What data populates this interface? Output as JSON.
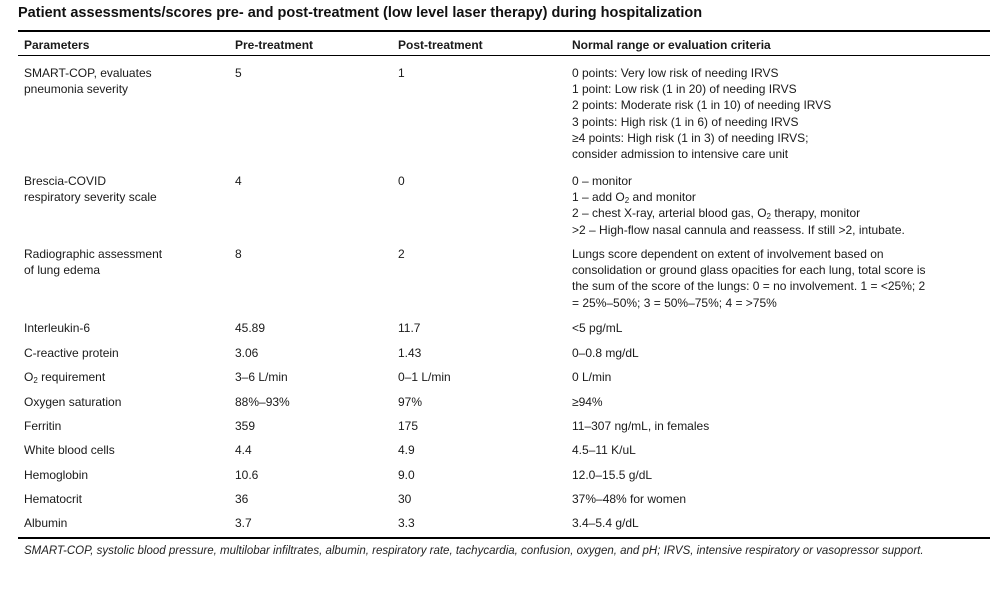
{
  "title": "Patient assessments/scores pre- and post-treatment (low level laser therapy) during hospitalization",
  "headers": {
    "parameters": "Parameters",
    "pre": "Pre-treatment",
    "post": "Post-treatment",
    "normal": "Normal range or evaluation criteria"
  },
  "rows": [
    {
      "param": [
        "SMART-COP, evaluates",
        "pneumonia severity"
      ],
      "pre": "5",
      "post": "1",
      "normal": [
        "0 points: Very low risk of needing IRVS",
        "1 point: Low risk (1 in 20) of needing IRVS",
        "2 points: Moderate risk (1 in 10) of needing IRVS",
        "3 points: High risk (1 in 6) of needing IRVS",
        "≥4 points: High risk (1 in 3) of needing IRVS;",
        "consider admission to intensive care unit"
      ]
    },
    {
      "param": [
        "Brescia-COVID",
        "respiratory severity scale"
      ],
      "pre": "4",
      "post": "0",
      "normal": [
        "0 – monitor",
        "1 – add O2 and monitor",
        "2 – chest X-ray, arterial blood gas, O2 therapy, monitor",
        ">2 – High-flow nasal cannula and reassess. If still >2, intubate."
      ]
    },
    {
      "param": [
        "Radiographic assessment",
        "of lung edema"
      ],
      "pre": "8",
      "post": "2",
      "normal": [
        "Lungs score dependent on extent of involvement based on",
        "consolidation or ground glass opacities for each lung, total score is",
        "the sum of the score of the lungs:  0 = no involvement. 1 = <25%; 2",
        "= 25%–50%; 3 = 50%–75%; 4 = >75%"
      ]
    },
    {
      "param": [
        "Interleukin-6"
      ],
      "pre": "45.89",
      "post": "11.7",
      "normal": [
        "<5 pg/mL"
      ]
    },
    {
      "param": [
        "C-reactive protein"
      ],
      "pre": "3.06",
      "post": "1.43",
      "normal": [
        "0–0.8 mg/dL"
      ]
    },
    {
      "param": [
        "O2 requirement"
      ],
      "pre": "3–6 L/min",
      "post": "0–1 L/min",
      "normal": [
        "0 L/min"
      ]
    },
    {
      "param": [
        "Oxygen saturation"
      ],
      "pre": "88%–93%",
      "post": "97%",
      "normal": [
        "≥94%"
      ]
    },
    {
      "param": [
        "Ferritin"
      ],
      "pre": "359",
      "post": "175",
      "normal": [
        "11–307 ng/mL, in females"
      ]
    },
    {
      "param": [
        "White blood cells"
      ],
      "pre": "4.4",
      "post": "4.9",
      "normal": [
        "4.5–11 K/uL"
      ]
    },
    {
      "param": [
        "Hemoglobin"
      ],
      "pre": "10.6",
      "post": "9.0",
      "normal": [
        "12.0–15.5 g/dL"
      ]
    },
    {
      "param": [
        "Hematocrit"
      ],
      "pre": "36",
      "post": "30",
      "normal": [
        "37%–48% for women"
      ]
    },
    {
      "param": [
        "Albumin"
      ],
      "pre": "3.7",
      "post": "3.3",
      "normal": [
        "3.4–5.4 g/dL"
      ]
    }
  ],
  "footnote": "SMART-COP, systolic blood pressure, multilobar infiltrates, albumin, respiratory rate, tachycardia, confusion, oxygen, and pH; IRVS, intensive respiratory or vasopressor support."
}
